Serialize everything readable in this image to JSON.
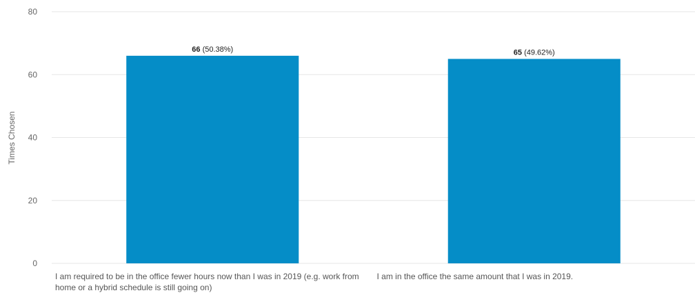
{
  "chart_data": {
    "type": "bar",
    "categories": [
      "I am required to be in the office fewer hours now than I was in 2019 (e.g. work from home or a hybrid schedule is still going on)",
      "I am in the office the same amount that I was in 2019."
    ],
    "values": [
      66,
      65
    ],
    "data_labels": [
      "(50.38%)",
      "(49.62%)"
    ],
    "ylabel": "Times Chosen",
    "xlabel": "",
    "ylim": [
      0,
      80
    ],
    "yticks": [
      0,
      20,
      40,
      60,
      80
    ],
    "grid": true,
    "bar_color": "#058dc7"
  }
}
